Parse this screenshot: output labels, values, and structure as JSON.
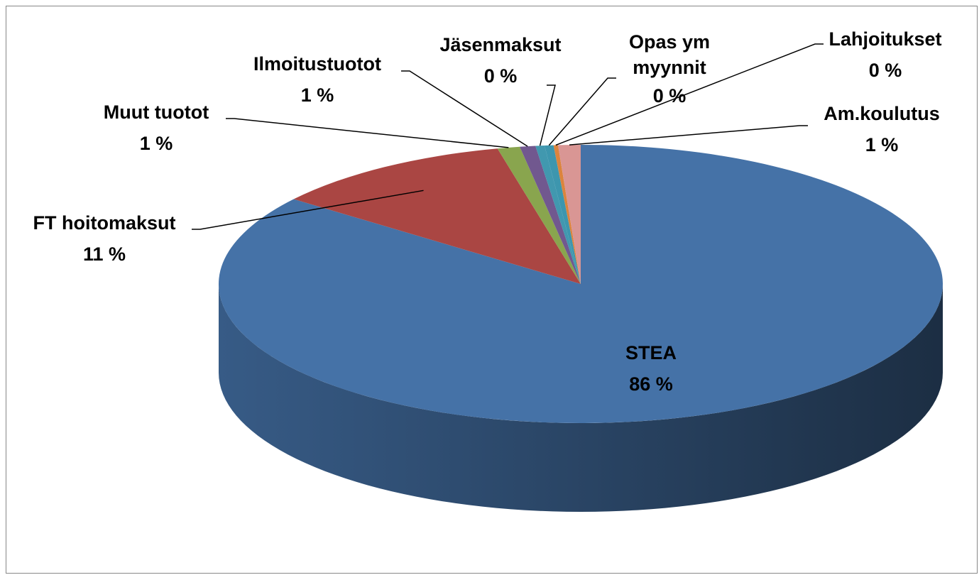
{
  "chart_data": {
    "type": "pie",
    "categories": [
      "STEA",
      "FT hoitomaksut",
      "Muut tuotot",
      "Ilmoitustuotot",
      "Jäsenmaksut",
      "Opas ym myynnit",
      "Lahjoitukset",
      "Am.koulutus"
    ],
    "values": [
      85.6,
      10.9,
      1.0,
      0.7,
      0.4,
      0.4,
      0.2,
      1.0
    ],
    "value_labels": [
      "86 %",
      "11 %",
      "1 %",
      "1 %",
      "0 %",
      "0 %",
      "0 %",
      "1 %"
    ],
    "colors": [
      "#4572a7",
      "#aa4643",
      "#89a54e",
      "#71588f",
      "#4198af",
      "#3d96ae",
      "#db843d",
      "#d99694"
    ]
  }
}
